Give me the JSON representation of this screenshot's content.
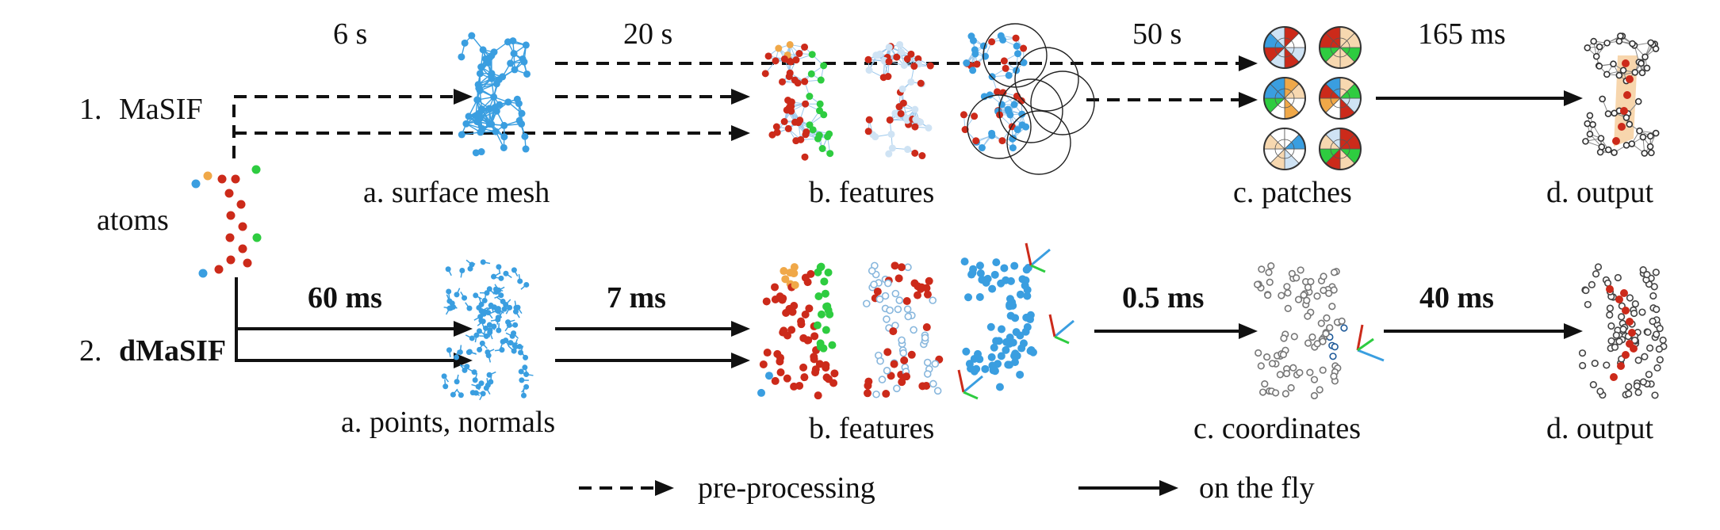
{
  "rows": {
    "masif": {
      "number": "1.",
      "name": "MaSIF"
    },
    "dmasif": {
      "number": "2.",
      "name": "dMaSIF"
    }
  },
  "input_label": "atoms",
  "masif_stages": {
    "a": "a. surface mesh",
    "b": "b. features",
    "c": "c. patches",
    "d": "d. output"
  },
  "dmasif_stages": {
    "a": "a. points, normals",
    "b": "b. features",
    "c": "c. coordinates",
    "d": "d. output"
  },
  "masif_times": [
    "6 s",
    "20 s",
    "50 s",
    "165 ms"
  ],
  "dmasif_times": [
    "60 ms",
    "7 ms",
    "0.5 ms",
    "40 ms"
  ],
  "legend": {
    "dashed": "pre-processing",
    "solid": "on the fly"
  },
  "colors": {
    "red": "#cc2a1a",
    "blue": "#3a9ee0",
    "green": "#2ecc40",
    "orange": "#f0a848",
    "light_blue": "#cfe3f4",
    "grey": "#777777"
  }
}
